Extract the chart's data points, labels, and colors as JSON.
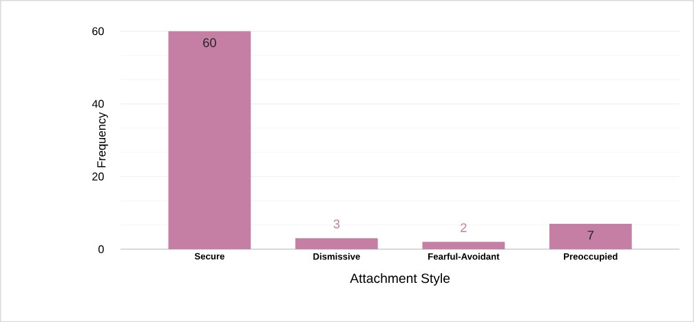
{
  "chart_data": {
    "type": "bar",
    "xlabel": "Attachment Style",
    "ylabel": "Frequency",
    "categories": [
      "Secure",
      "Dismissive",
      "Fearful-Avoidant",
      "Preoccupied"
    ],
    "values": [
      60,
      3,
      2,
      7
    ],
    "color": "#c57fa5",
    "ylim": [
      0,
      60
    ],
    "yticks": [
      0,
      20,
      40,
      60
    ],
    "grid": true,
    "data_labels": true
  }
}
